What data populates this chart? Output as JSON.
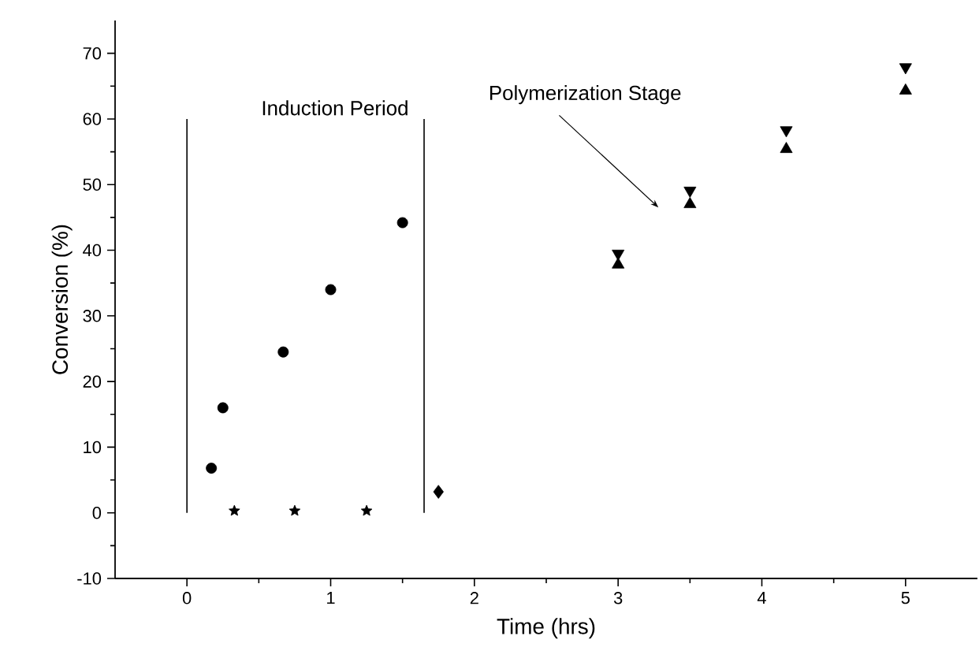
{
  "chart_data": {
    "type": "scatter",
    "xlabel": "Time (hrs)",
    "ylabel": "Conversion (%)",
    "xlim": [
      -0.5,
      5.5
    ],
    "ylim": [
      -10,
      75
    ],
    "xticks": [
      0,
      1,
      2,
      3,
      4,
      5
    ],
    "yticks": [
      -10,
      0,
      10,
      20,
      30,
      40,
      50,
      60,
      70
    ],
    "grid": false,
    "series": [
      {
        "color": "#000000",
        "marker": "circle",
        "x": [
          0.17,
          0.25,
          0.67,
          1.0,
          1.5
        ],
        "values": [
          6.8,
          16,
          24.5,
          34,
          44.2
        ]
      },
      {
        "color": "#000000",
        "marker": "star",
        "x": [
          0.33,
          0.75,
          1.25
        ],
        "values": [
          0.3,
          0.3,
          0.3
        ]
      },
      {
        "color": "#000000",
        "marker": "diamond",
        "x": [
          1.75
        ],
        "values": [
          3.2
        ]
      },
      {
        "color": "#000000",
        "marker": "triangle-down",
        "x": [
          3.0,
          3.5,
          4.17,
          5.0
        ],
        "values": [
          39.5,
          49.1,
          58.3,
          67.9
        ]
      },
      {
        "color": "#000000",
        "marker": "triangle",
        "x": [
          3.0,
          3.5,
          4.17,
          5.0
        ],
        "values": [
          37.8,
          47,
          55.4,
          64.3
        ]
      }
    ],
    "ref_lines": [
      {
        "axis": "x",
        "value": 0
      },
      {
        "axis": "x",
        "value": 1.65
      }
    ],
    "annotations": [
      "Induction Period",
      "Polymerization Stage"
    ]
  }
}
